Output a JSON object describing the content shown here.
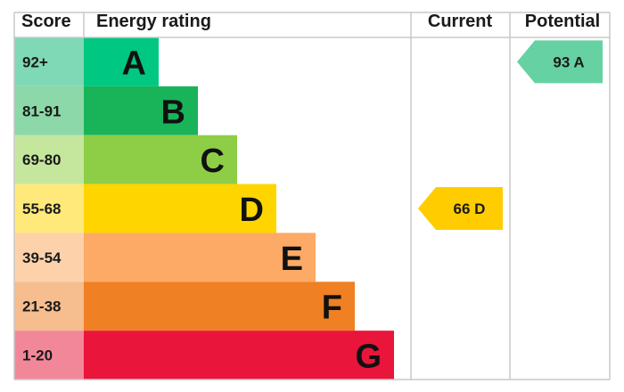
{
  "chart_data": {
    "type": "bar",
    "headers": {
      "score": "Score",
      "rating": "Energy rating",
      "current": "Current",
      "potential": "Potential"
    },
    "bands": [
      {
        "letter": "A",
        "range": "92+",
        "color": "#00c781",
        "score_color": "#7fd9b6"
      },
      {
        "letter": "B",
        "range": "81-91",
        "color": "#19b459",
        "score_color": "#8cd8a8"
      },
      {
        "letter": "C",
        "range": "69-80",
        "color": "#8dce46",
        "score_color": "#c4e79d"
      },
      {
        "letter": "D",
        "range": "55-68",
        "color": "#ffd500",
        "score_color": "#ffe97a"
      },
      {
        "letter": "E",
        "range": "39-54",
        "color": "#fcaa65",
        "score_color": "#fdd2ab"
      },
      {
        "letter": "F",
        "range": "21-38",
        "color": "#ef8023",
        "score_color": "#f6bd8e"
      },
      {
        "letter": "G",
        "range": "1-20",
        "color": "#e9153b",
        "score_color": "#f3879a"
      }
    ],
    "current": {
      "value": 66,
      "band": "D",
      "label": "66 D",
      "color": "#ffcc00"
    },
    "potential": {
      "value": 93,
      "band": "A",
      "label": "93 A",
      "color": "#66d1a3"
    }
  }
}
